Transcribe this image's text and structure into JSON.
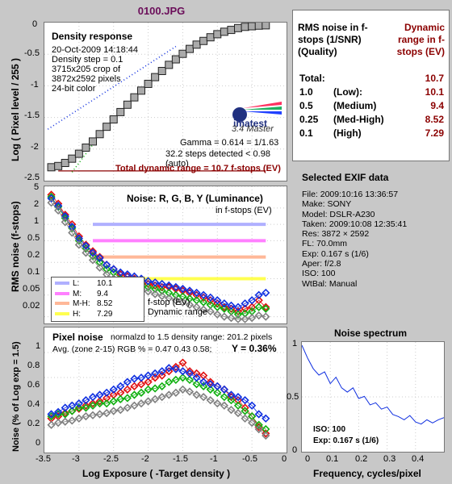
{
  "title": "0100.JPG",
  "colors": {
    "red": "#e01010",
    "green": "#10b010",
    "blue": "#1030e0",
    "gray": "#808080",
    "dark_red": "#8b0000",
    "title": "#6b0e5a"
  },
  "density": {
    "ylabel": "Log ( Pixel level / 255 )",
    "panel_title": "Density response",
    "info": [
      "20-Oct-2009 14:18:44",
      "Density step = 0.1",
      "3715x205 crop of",
      "3872x2592 pixels",
      "24-bit color"
    ],
    "logo": "imatest",
    "logo_sub": "3.4  Master",
    "gamma": "Gamma = 0.614 = 1/1.63",
    "steps": "32.2 steps detected < 0.98 (auto)",
    "total_dr": "Total dynamic range = 10.7 f-stops (EV)",
    "yticks": [
      "0",
      "-0.5",
      "-1",
      "-1.5",
      "-2",
      "-2.5"
    ]
  },
  "dr_table": {
    "header_left": "RMS noise in f-stops (1/SNR) (Quality)",
    "header_right": "Dynamic range in f-stops (EV)",
    "rows": [
      {
        "a": "Total:",
        "b": "",
        "v": "10.7"
      },
      {
        "a": "1.0",
        "b": "(Low):",
        "v": "10.1"
      },
      {
        "a": "0.5",
        "b": "(Medium)",
        "v": "9.4"
      },
      {
        "a": "0.25",
        "b": "(Med-High)",
        "v": "8.52"
      },
      {
        "a": "0.1",
        "b": "(High)",
        "v": "7.29"
      }
    ]
  },
  "noise_ev": {
    "ylabel": "RMS noise (f-stops)",
    "panel_title": "Noise: R, G, B, Y (Luminance)",
    "panel_sub": "in f-stops (EV)",
    "yticks": [
      "5",
      "2",
      "1",
      "0.5",
      "0.2",
      "0.1",
      "0.05",
      "0.02"
    ],
    "legend": [
      {
        "label": "L:",
        "value": "10.1",
        "color": "#b0b0ff"
      },
      {
        "label": "M:",
        "value": "9.4",
        "color": "#ff80ff"
      },
      {
        "label": "M-H:",
        "value": "8.52",
        "color": "#ffb898"
      },
      {
        "label": "H:",
        "value": "7.29",
        "color": "#ffff50"
      }
    ],
    "note1": "f-stop (EV)",
    "note2": "Dynamic range"
  },
  "exif": {
    "heading": "Selected EXIF data",
    "lines": [
      "File:  2009:10:16  13:36:57",
      "Make:  SONY",
      "Model: DSLR-A230",
      "Taken: 2009:10:08 12:35:41",
      "Res:   3872 × 2592",
      "FL:  70.0mm",
      "Exp:  0.167 s  (1/6)",
      "Aper:  f/2.8",
      "ISO:   100",
      "WtBal: Manual"
    ]
  },
  "pixel_noise": {
    "ylabel": "Noise (% of Log exp = 1.5)",
    "panel_title": "Pixel noise",
    "normalized": "normalzd to 1.5 density range: 201.2 pixels",
    "avg": "Avg. (zone 2-15) RGB % = 0.47  0.43  0.58;",
    "y_val": "Y = 0.36%",
    "yticks": [
      "1",
      "0.8",
      "0.6",
      "0.4",
      "0.2",
      "0"
    ],
    "xlabel": "Log Exposure ( -Target density )",
    "xticks": [
      "-3.5",
      "-3",
      "-2.5",
      "-2",
      "-1.5",
      "-1",
      "-0.5",
      "0"
    ]
  },
  "spectrum": {
    "title": "Noise spectrum",
    "xlabel": "Frequency, cycles/pixel",
    "iso": "ISO:    100",
    "exp": "Exp:   0.167 s   (1/6)",
    "yticks": [
      "1",
      "0.5",
      "0"
    ],
    "xticks": [
      "0",
      "0.1",
      "0.2",
      "0.3",
      "0.4"
    ]
  },
  "chart_data": [
    {
      "type": "scatter",
      "title": "Density response",
      "ylabel": "Log ( Pixel level / 255 )",
      "ylim": [
        -2.5,
        0
      ],
      "x": [
        -3.4,
        -3.3,
        -3.2,
        -3.1,
        -3.0,
        -2.9,
        -2.8,
        -2.7,
        -2.6,
        -2.5,
        -2.4,
        -2.3,
        -2.2,
        -2.1,
        -2.0,
        -1.9,
        -1.8,
        -1.7,
        -1.6,
        -1.5,
        -1.4,
        -1.3,
        -1.2,
        -1.1,
        -1.0,
        -0.9,
        -0.8,
        -0.7,
        -0.6,
        -0.5,
        -0.4,
        -0.3
      ],
      "y": [
        -2.32,
        -2.3,
        -2.25,
        -2.18,
        -2.1,
        -2.0,
        -1.9,
        -1.78,
        -1.66,
        -1.54,
        -1.42,
        -1.3,
        -1.18,
        -1.07,
        -0.96,
        -0.85,
        -0.75,
        -0.65,
        -0.56,
        -0.47,
        -0.39,
        -0.32,
        -0.26,
        -0.2,
        -0.15,
        -0.11,
        -0.08,
        -0.05,
        -0.03,
        -0.02,
        -0.01,
        -0.005
      ]
    },
    {
      "type": "scatter",
      "title": "Noise: R, G, B, Y (Luminance)",
      "ylabel": "RMS noise (f-stops)",
      "yscale": "log",
      "ylim": [
        0.015,
        5
      ],
      "x": [
        -3.4,
        -3.3,
        -3.2,
        -3.1,
        -3.0,
        -2.9,
        -2.8,
        -2.7,
        -2.6,
        -2.5,
        -2.4,
        -2.3,
        -2.2,
        -2.1,
        -2.0,
        -1.9,
        -1.8,
        -1.7,
        -1.6,
        -1.5,
        -1.4,
        -1.3,
        -1.2,
        -1.1,
        -1.0,
        -0.9,
        -0.8,
        -0.7,
        -0.6,
        -0.5,
        -0.4,
        -0.3
      ],
      "series": [
        {
          "color": "#e01010",
          "values": [
            3.5,
            2.4,
            1.5,
            1.0,
            0.6,
            0.42,
            0.32,
            0.25,
            0.18,
            0.15,
            0.12,
            0.11,
            0.1,
            0.09,
            0.08,
            0.075,
            0.07,
            0.07,
            0.065,
            0.06,
            0.055,
            0.05,
            0.045,
            0.04,
            0.035,
            0.03,
            0.028,
            0.025,
            0.028,
            0.03,
            0.04,
            0.03
          ]
        },
        {
          "color": "#10b010",
          "values": [
            3.2,
            2.1,
            1.3,
            0.85,
            0.5,
            0.36,
            0.26,
            0.2,
            0.15,
            0.13,
            0.1,
            0.09,
            0.085,
            0.08,
            0.07,
            0.065,
            0.06,
            0.055,
            0.05,
            0.047,
            0.043,
            0.04,
            0.037,
            0.033,
            0.03,
            0.028,
            0.025,
            0.022,
            0.023,
            0.025,
            0.03,
            0.028
          ]
        },
        {
          "color": "#1030e0",
          "values": [
            3.0,
            2.2,
            1.4,
            0.9,
            0.55,
            0.4,
            0.3,
            0.24,
            0.18,
            0.15,
            0.13,
            0.12,
            0.11,
            0.1,
            0.09,
            0.085,
            0.08,
            0.075,
            0.07,
            0.065,
            0.06,
            0.055,
            0.05,
            0.045,
            0.04,
            0.035,
            0.032,
            0.03,
            0.035,
            0.04,
            0.05,
            0.055
          ]
        },
        {
          "color": "#808080",
          "values": [
            2.5,
            1.8,
            1.1,
            0.7,
            0.42,
            0.3,
            0.22,
            0.16,
            0.12,
            0.1,
            0.085,
            0.075,
            0.07,
            0.065,
            0.058,
            0.052,
            0.048,
            0.044,
            0.04,
            0.037,
            0.033,
            0.03,
            0.027,
            0.025,
            0.022,
            0.02,
            0.019,
            0.018,
            0.018,
            0.019,
            0.021,
            0.02
          ]
        }
      ],
      "levels": [
        {
          "name": "L",
          "value": 1.0
        },
        {
          "name": "M",
          "value": 0.5
        },
        {
          "name": "M-H",
          "value": 0.25
        },
        {
          "name": "H",
          "value": 0.1
        }
      ]
    },
    {
      "type": "scatter",
      "title": "Pixel noise",
      "ylabel": "Noise (% of Log exp = 1.5)",
      "xlabel": "Log Exposure ( -Target density )",
      "xlim": [
        -3.5,
        0
      ],
      "ylim": [
        0,
        1
      ],
      "x": [
        -3.4,
        -3.3,
        -3.2,
        -3.1,
        -3.0,
        -2.9,
        -2.8,
        -2.7,
        -2.6,
        -2.5,
        -2.4,
        -2.3,
        -2.2,
        -2.1,
        -2.0,
        -1.9,
        -1.8,
        -1.7,
        -1.6,
        -1.5,
        -1.4,
        -1.3,
        -1.2,
        -1.1,
        -1.0,
        -0.9,
        -0.8,
        -0.7,
        -0.6,
        -0.5,
        -0.4,
        -0.3
      ],
      "series": [
        {
          "color": "#e01010",
          "values": [
            0.28,
            0.3,
            0.33,
            0.35,
            0.37,
            0.4,
            0.42,
            0.44,
            0.47,
            0.5,
            0.52,
            0.55,
            0.58,
            0.6,
            0.62,
            0.66,
            0.68,
            0.72,
            0.76,
            0.8,
            0.72,
            0.7,
            0.68,
            0.62,
            0.58,
            0.55,
            0.48,
            0.45,
            0.38,
            0.3,
            0.2,
            0.14
          ]
        },
        {
          "color": "#10b010",
          "values": [
            0.3,
            0.32,
            0.32,
            0.35,
            0.38,
            0.38,
            0.4,
            0.42,
            0.42,
            0.44,
            0.46,
            0.47,
            0.5,
            0.52,
            0.55,
            0.56,
            0.58,
            0.62,
            0.64,
            0.66,
            0.64,
            0.6,
            0.58,
            0.55,
            0.52,
            0.48,
            0.45,
            0.4,
            0.35,
            0.3,
            0.22,
            0.18
          ]
        },
        {
          "color": "#1030e0",
          "values": [
            0.32,
            0.34,
            0.38,
            0.4,
            0.42,
            0.45,
            0.48,
            0.5,
            0.52,
            0.55,
            0.58,
            0.62,
            0.65,
            0.66,
            0.68,
            0.7,
            0.72,
            0.75,
            0.74,
            0.72,
            0.7,
            0.66,
            0.62,
            0.6,
            0.58,
            0.55,
            0.5,
            0.48,
            0.45,
            0.4,
            0.32,
            0.28
          ]
        },
        {
          "color": "#808080",
          "values": [
            0.22,
            0.24,
            0.25,
            0.26,
            0.28,
            0.3,
            0.31,
            0.32,
            0.33,
            0.35,
            0.36,
            0.38,
            0.4,
            0.42,
            0.44,
            0.46,
            0.48,
            0.5,
            0.52,
            0.55,
            0.53,
            0.5,
            0.48,
            0.45,
            0.42,
            0.4,
            0.36,
            0.33,
            0.28,
            0.24,
            0.18,
            0.12
          ]
        }
      ]
    },
    {
      "type": "line",
      "title": "Noise spectrum",
      "xlabel": "Frequency, cycles/pixel",
      "xlim": [
        0,
        0.5
      ],
      "ylim": [
        0,
        1
      ],
      "x": [
        0,
        0.02,
        0.04,
        0.06,
        0.08,
        0.1,
        0.12,
        0.14,
        0.16,
        0.18,
        0.2,
        0.22,
        0.24,
        0.26,
        0.28,
        0.3,
        0.32,
        0.34,
        0.36,
        0.38,
        0.4,
        0.42,
        0.44,
        0.46,
        0.48,
        0.5
      ],
      "values": [
        1.0,
        0.88,
        0.78,
        0.72,
        0.75,
        0.64,
        0.7,
        0.6,
        0.56,
        0.6,
        0.5,
        0.52,
        0.44,
        0.46,
        0.4,
        0.42,
        0.35,
        0.33,
        0.3,
        0.34,
        0.28,
        0.26,
        0.3,
        0.27,
        0.3,
        0.32
      ]
    }
  ]
}
